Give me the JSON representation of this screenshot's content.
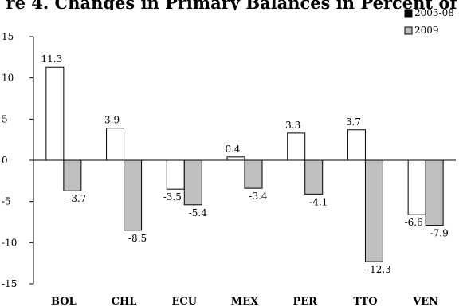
{
  "chart_data": {
    "type": "bar",
    "title": "re 4. Changes in Primary Balances in Percent of",
    "categories": [
      "BOL",
      "CHL",
      "ECU",
      "MEX",
      "PER",
      "TTO",
      "VEN"
    ],
    "series": [
      {
        "name": "2003-08",
        "color": "#ffffff",
        "values": [
          11.3,
          3.9,
          -3.5,
          0.4,
          3.3,
          3.7,
          -6.6
        ]
      },
      {
        "name": "2009",
        "color": "#c0c0c0",
        "values": [
          -3.7,
          -8.5,
          -5.4,
          -3.4,
          -4.1,
          -12.3,
          -7.9
        ]
      }
    ],
    "ylim": [
      -15,
      15
    ],
    "yticks": [
      "-15",
      "-10",
      "-5",
      "0",
      "5",
      "10",
      "15"
    ],
    "data_labels": [
      [
        "11.3",
        "3.9",
        "-3.5",
        "0.4",
        "3.3",
        "3.7",
        "-6.6"
      ],
      [
        "-3.7",
        "-8.5",
        "-5.4",
        "-3.4",
        "-4.1",
        "-12.3",
        "-7.9"
      ]
    ],
    "legend_position": "top-right",
    "legend_marker_2003_08": "#000000",
    "grid": false
  }
}
